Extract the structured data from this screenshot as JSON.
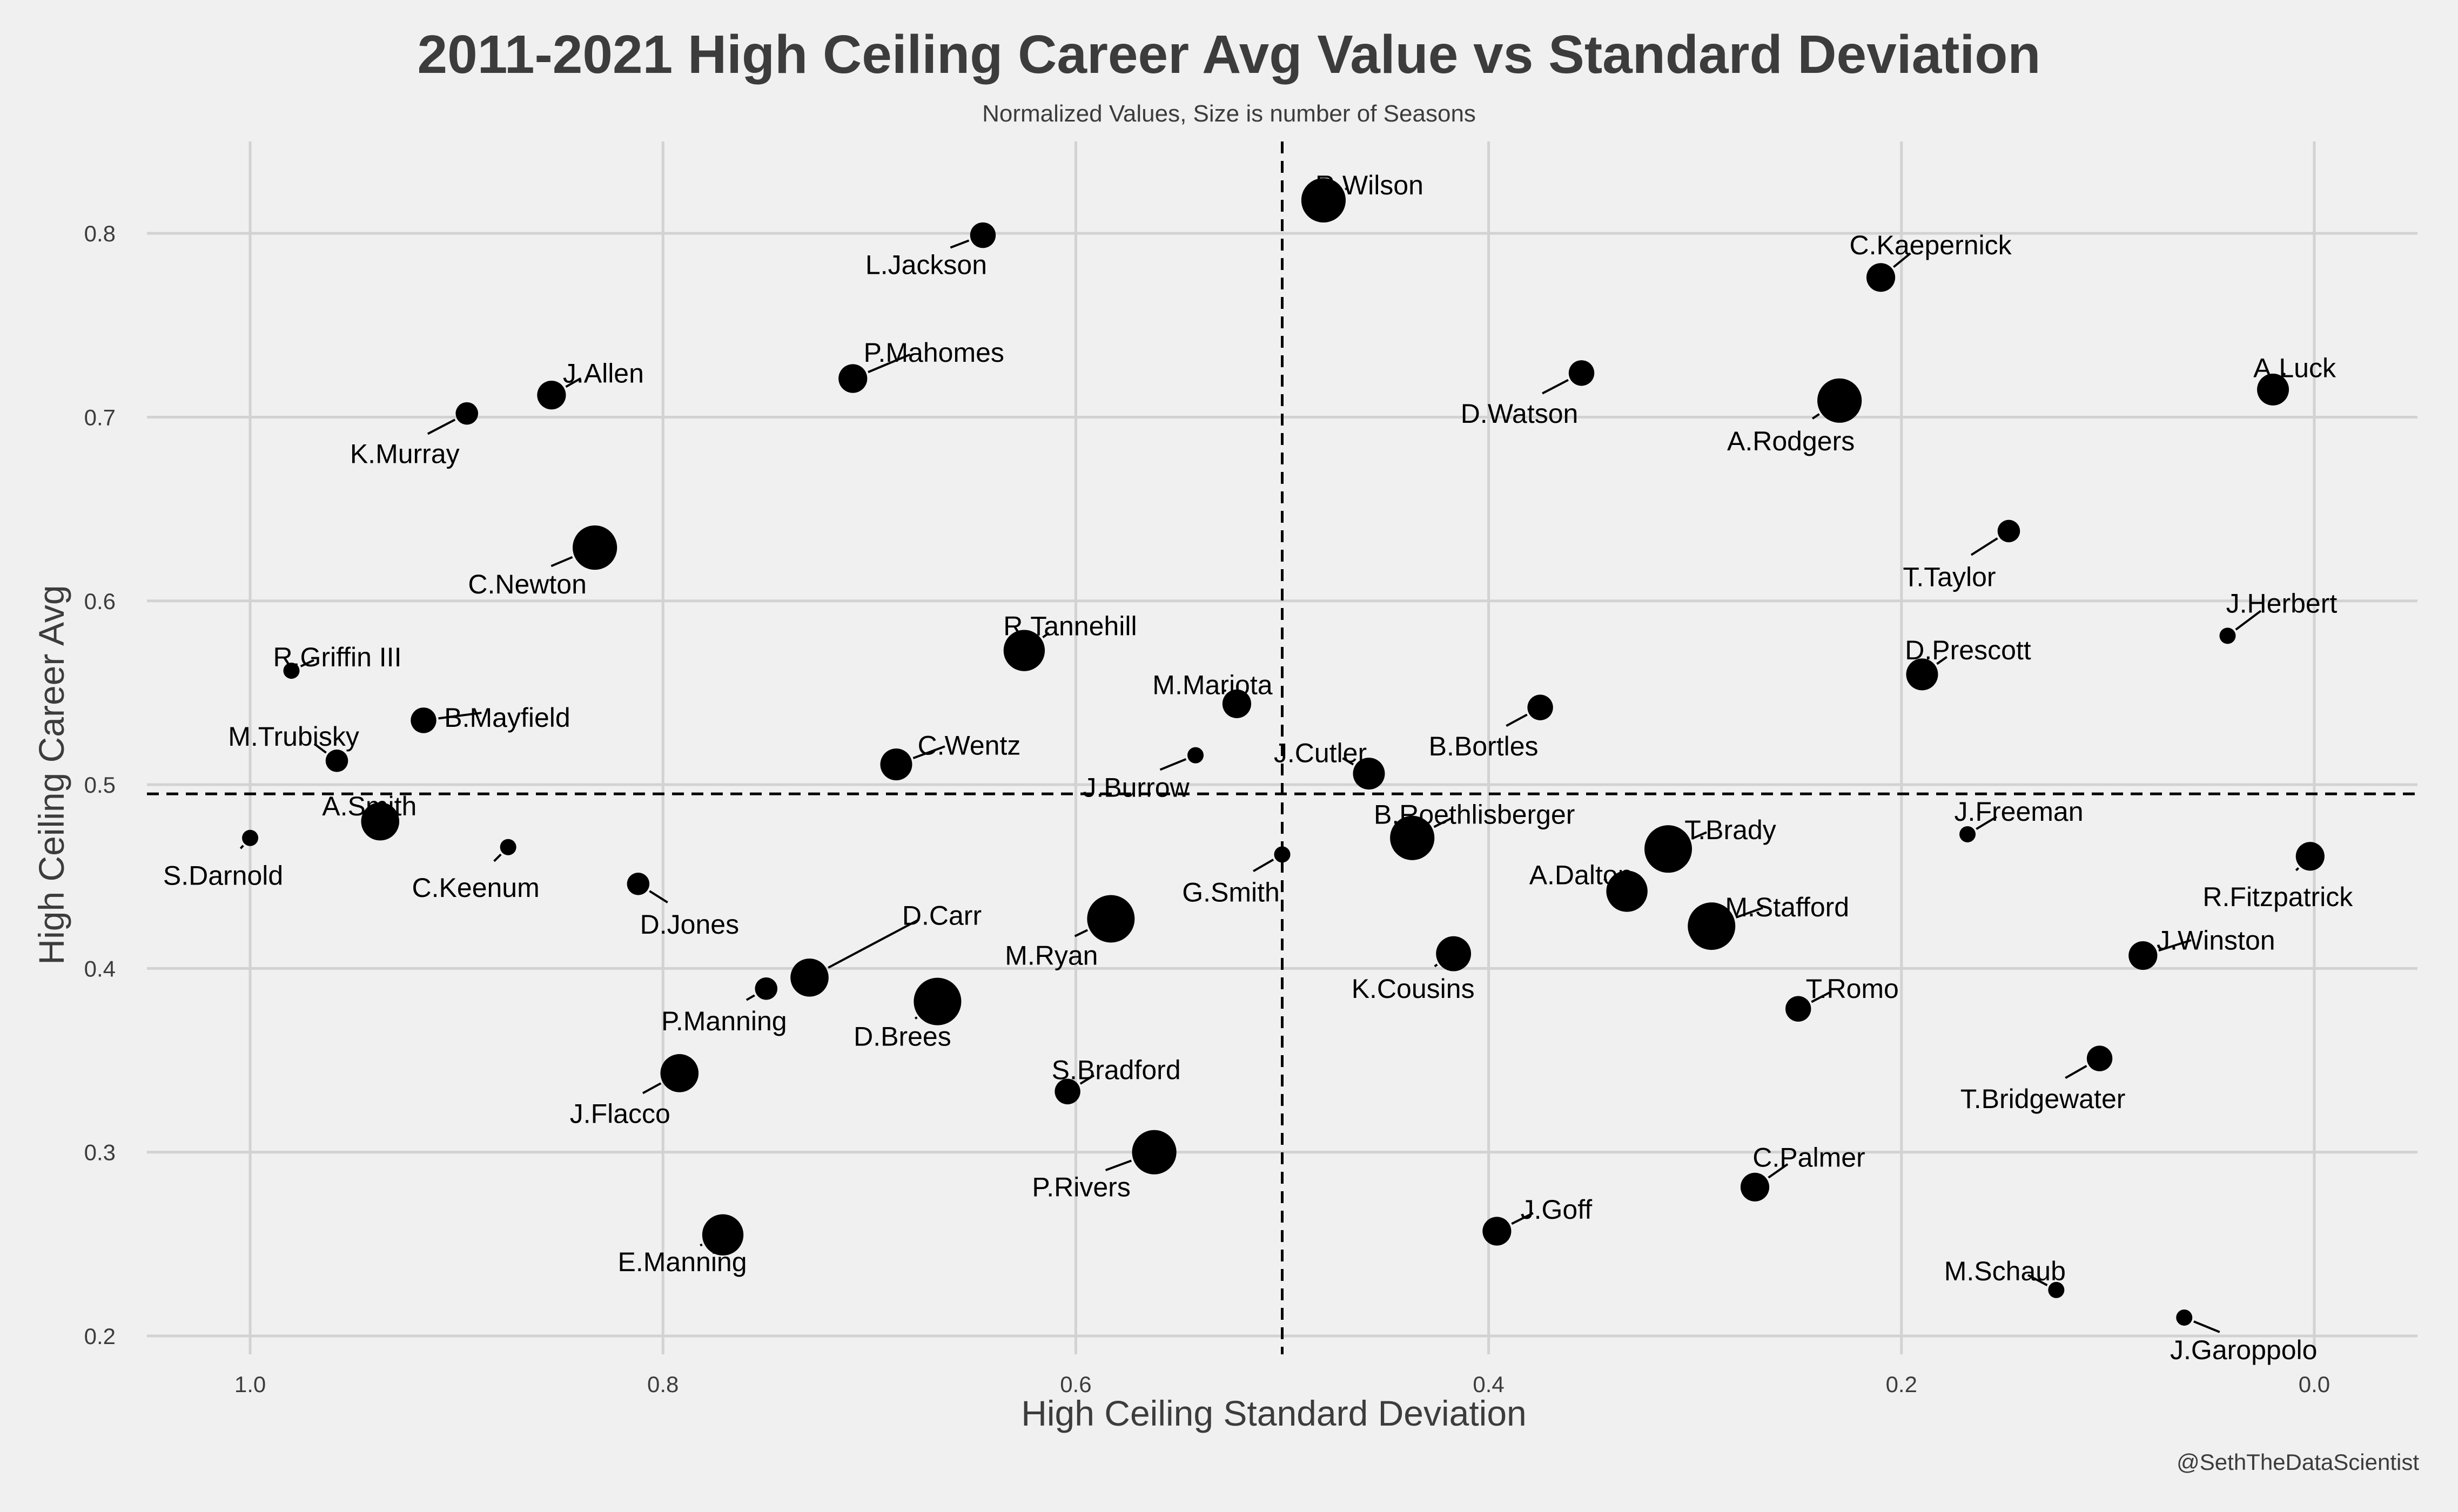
{
  "chart_data": {
    "type": "scatter",
    "title": "2011-2021 High Ceiling Career Avg Value vs Standard Deviation",
    "subtitle": "Normalized Values, Size is number of Seasons",
    "xlabel": "High Ceiling Standard Deviation",
    "ylabel": "High Ceiling Career Avg",
    "caption": "@SethTheDataScientist",
    "x_reversed": true,
    "xlim": [
      1.05,
      -0.05
    ],
    "ylim": [
      0.19,
      0.85
    ],
    "x_ticks": [
      1.0,
      0.8,
      0.6,
      0.4,
      0.2,
      0.0
    ],
    "x_tick_labels": [
      "1.0",
      "0.8",
      "0.6",
      "0.4",
      "0.2",
      "0.0"
    ],
    "y_ticks": [
      0.2,
      0.3,
      0.4,
      0.5,
      0.6,
      0.7,
      0.8
    ],
    "y_tick_labels": [
      "0.2",
      "0.3",
      "0.4",
      "0.5",
      "0.6",
      "0.7",
      "0.8"
    ],
    "reference_lines": {
      "x": 0.5,
      "y": 0.495
    },
    "grid": true,
    "point_color": "#000000",
    "points": [
      {
        "name": "R.Wilson",
        "x": 0.48,
        "y": 0.818,
        "seasons": 10
      },
      {
        "name": "L.Jackson",
        "x": 0.645,
        "y": 0.799,
        "seasons": 4
      },
      {
        "name": "C.Kaepernick",
        "x": 0.21,
        "y": 0.776,
        "seasons": 5
      },
      {
        "name": "P.Mahomes",
        "x": 0.708,
        "y": 0.721,
        "seasons": 5
      },
      {
        "name": "J.Allen",
        "x": 0.854,
        "y": 0.712,
        "seasons": 5
      },
      {
        "name": "D.Watson",
        "x": 0.355,
        "y": 0.724,
        "seasons": 4
      },
      {
        "name": "A.Rodgers",
        "x": 0.23,
        "y": 0.709,
        "seasons": 10
      },
      {
        "name": "A.Luck",
        "x": 0.02,
        "y": 0.715,
        "seasons": 6
      },
      {
        "name": "K.Murray",
        "x": 0.895,
        "y": 0.702,
        "seasons": 3
      },
      {
        "name": "C.Newton",
        "x": 0.833,
        "y": 0.629,
        "seasons": 10
      },
      {
        "name": "T.Taylor",
        "x": 0.148,
        "y": 0.638,
        "seasons": 3
      },
      {
        "name": "J.Herbert",
        "x": 0.042,
        "y": 0.581,
        "seasons": 1
      },
      {
        "name": "R.Griffin III",
        "x": 0.98,
        "y": 0.562,
        "seasons": 1
      },
      {
        "name": "R.Tannehill",
        "x": 0.625,
        "y": 0.573,
        "seasons": 9
      },
      {
        "name": "D.Prescott",
        "x": 0.19,
        "y": 0.56,
        "seasons": 6
      },
      {
        "name": "M.Mariota",
        "x": 0.522,
        "y": 0.544,
        "seasons": 5
      },
      {
        "name": "B.Bortles",
        "x": 0.375,
        "y": 0.542,
        "seasons": 4
      },
      {
        "name": "B.Mayfield",
        "x": 0.916,
        "y": 0.535,
        "seasons": 4
      },
      {
        "name": "J.Burrow",
        "x": 0.542,
        "y": 0.516,
        "seasons": 1
      },
      {
        "name": "M.Trubisky",
        "x": 0.958,
        "y": 0.513,
        "seasons": 3
      },
      {
        "name": "C.Wentz",
        "x": 0.687,
        "y": 0.511,
        "seasons": 6
      },
      {
        "name": "J.Cutler",
        "x": 0.458,
        "y": 0.506,
        "seasons": 6
      },
      {
        "name": "A.Smith",
        "x": 0.937,
        "y": 0.48,
        "seasons": 8
      },
      {
        "name": "J.Freeman",
        "x": 0.168,
        "y": 0.473,
        "seasons": 1
      },
      {
        "name": "B.Roethlisberger",
        "x": 0.437,
        "y": 0.471,
        "seasons": 10
      },
      {
        "name": "S.Darnold",
        "x": 1.0,
        "y": 0.471,
        "seasons": 1
      },
      {
        "name": "C.Keenum",
        "x": 0.875,
        "y": 0.466,
        "seasons": 1
      },
      {
        "name": "T.Brady",
        "x": 0.313,
        "y": 0.465,
        "seasons": 11
      },
      {
        "name": "G.Smith",
        "x": 0.5,
        "y": 0.462,
        "seasons": 1
      },
      {
        "name": "R.Fitzpatrick",
        "x": 0.002,
        "y": 0.461,
        "seasons": 5
      },
      {
        "name": "D.Jones",
        "x": 0.812,
        "y": 0.446,
        "seasons": 3
      },
      {
        "name": "A.Dalton",
        "x": 0.333,
        "y": 0.442,
        "seasons": 9
      },
      {
        "name": "M.Ryan",
        "x": 0.583,
        "y": 0.427,
        "seasons": 11
      },
      {
        "name": "M.Stafford",
        "x": 0.292,
        "y": 0.423,
        "seasons": 11
      },
      {
        "name": "K.Cousins",
        "x": 0.417,
        "y": 0.408,
        "seasons": 7
      },
      {
        "name": "J.Winston",
        "x": 0.083,
        "y": 0.407,
        "seasons": 5
      },
      {
        "name": "D.Carr",
        "x": 0.729,
        "y": 0.395,
        "seasons": 8
      },
      {
        "name": "P.Manning",
        "x": 0.75,
        "y": 0.389,
        "seasons": 3
      },
      {
        "name": "D.Brees",
        "x": 0.667,
        "y": 0.382,
        "seasons": 11
      },
      {
        "name": "T.Romo",
        "x": 0.25,
        "y": 0.378,
        "seasons": 4
      },
      {
        "name": "T.Bridgewater",
        "x": 0.104,
        "y": 0.351,
        "seasons": 4
      },
      {
        "name": "J.Flacco",
        "x": 0.792,
        "y": 0.343,
        "seasons": 8
      },
      {
        "name": "S.Bradford",
        "x": 0.604,
        "y": 0.333,
        "seasons": 4
      },
      {
        "name": "P.Rivers",
        "x": 0.562,
        "y": 0.3,
        "seasons": 10
      },
      {
        "name": "C.Palmer",
        "x": 0.271,
        "y": 0.281,
        "seasons": 5
      },
      {
        "name": "J.Goff",
        "x": 0.396,
        "y": 0.257,
        "seasons": 5
      },
      {
        "name": "E.Manning",
        "x": 0.771,
        "y": 0.255,
        "seasons": 9
      },
      {
        "name": "M.Schaub",
        "x": 0.125,
        "y": 0.225,
        "seasons": 1
      },
      {
        "name": "J.Garoppolo",
        "x": 0.063,
        "y": 0.21,
        "seasons": 1
      }
    ]
  }
}
